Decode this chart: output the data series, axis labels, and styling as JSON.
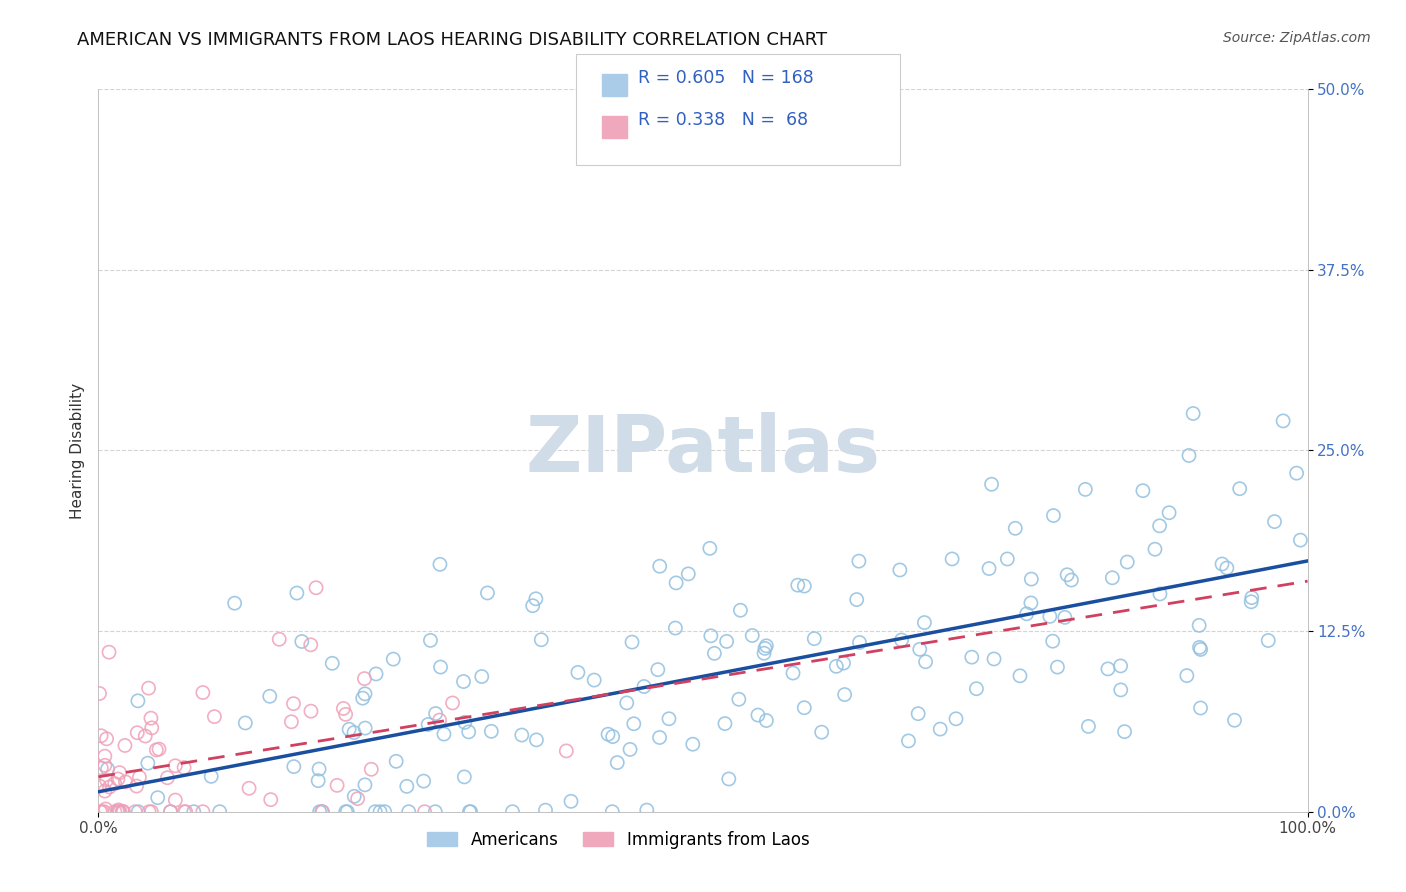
{
  "title": "AMERICAN VS IMMIGRANTS FROM LAOS HEARING DISABILITY CORRELATION CHART",
  "source": "Source: ZipAtlas.com",
  "ylabel": "Hearing Disability",
  "xlim": [
    0,
    1.0
  ],
  "ylim": [
    0,
    0.5
  ],
  "xtick_labels": [
    "0.0%",
    "100.0%"
  ],
  "ytick_labels": [
    "0.0%",
    "12.5%",
    "25.0%",
    "37.5%",
    "50.0%"
  ],
  "ytick_values": [
    0.0,
    0.125,
    0.25,
    0.375,
    0.5
  ],
  "xtick_values": [
    0.0,
    1.0
  ],
  "r_american": 0.605,
  "n_american": 168,
  "r_laos": 0.338,
  "n_laos": 68,
  "blue_scatter_color": "#92c0e0",
  "pink_scatter_color": "#f0a0b8",
  "blue_line_color": "#1a4fa0",
  "pink_line_color": "#d04060",
  "title_fontsize": 13,
  "source_fontsize": 10,
  "watermark": "ZIPatlas",
  "watermark_color": "#d0dce8",
  "background_color": "#ffffff",
  "grid_color": "#d0d0d0",
  "legend_text_color": "#3060c0",
  "ytick_color": "#4472c4"
}
